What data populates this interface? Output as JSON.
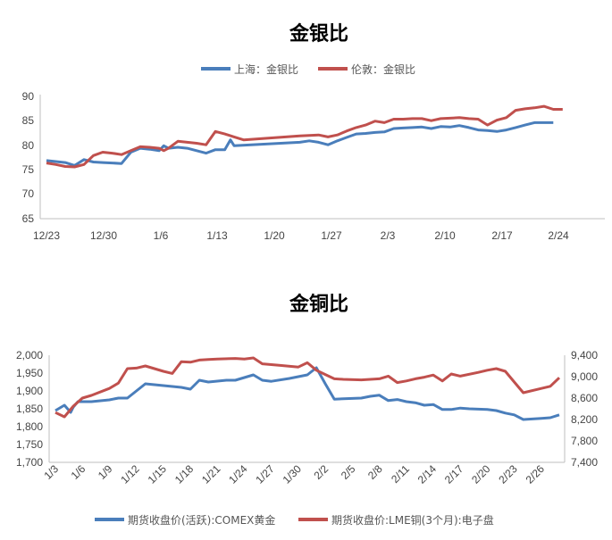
{
  "chart_data": [
    {
      "type": "line",
      "title": "金银比",
      "legend_position": "top",
      "y_axis": {
        "ticks": [
          "90",
          "85",
          "80",
          "75",
          "70",
          "65"
        ],
        "range": [
          65,
          90
        ]
      },
      "x_axis": {
        "ticks": [
          "12/23",
          "12/30",
          "1/6",
          "1/13",
          "1/20",
          "1/27",
          "2/3",
          "2/10",
          "2/17",
          "2/24"
        ]
      },
      "series": [
        {
          "name": "上海：金银比",
          "color": "#4A7EBB",
          "points": [
            [
              0,
              76.8
            ],
            [
              1,
              76.6
            ],
            [
              2,
              76.4
            ],
            [
              3,
              75.8
            ],
            [
              4,
              77.0
            ],
            [
              5,
              76.5
            ],
            [
              6,
              76.4
            ],
            [
              7,
              76.3
            ],
            [
              8,
              76.2
            ],
            [
              9,
              78.5
            ],
            [
              10,
              79.3
            ],
            [
              11,
              79.1
            ],
            [
              12,
              78.8
            ],
            [
              12.5,
              79.8
            ],
            [
              13,
              79.3
            ],
            [
              14,
              79.5
            ],
            [
              15,
              79.3
            ],
            [
              16,
              78.8
            ],
            [
              17,
              78.3
            ],
            [
              18,
              79.0
            ],
            [
              19,
              79.0
            ],
            [
              19.6,
              81.0
            ],
            [
              20,
              79.8
            ],
            [
              27,
              80.5
            ],
            [
              28,
              80.8
            ],
            [
              29,
              80.5
            ],
            [
              30,
              80.0
            ],
            [
              31,
              80.8
            ],
            [
              32,
              81.5
            ],
            [
              33,
              82.2
            ],
            [
              34,
              82.3
            ],
            [
              35,
              82.5
            ],
            [
              36,
              82.6
            ],
            [
              37,
              83.3
            ],
            [
              38,
              83.4
            ],
            [
              39,
              83.5
            ],
            [
              40,
              83.6
            ],
            [
              41,
              83.3
            ],
            [
              42,
              83.7
            ],
            [
              43,
              83.6
            ],
            [
              44,
              83.9
            ],
            [
              45,
              83.5
            ],
            [
              46,
              83.0
            ],
            [
              47,
              82.9
            ],
            [
              48,
              82.7
            ],
            [
              49,
              83.0
            ],
            [
              50,
              83.5
            ],
            [
              51,
              84.0
            ],
            [
              52,
              84.5
            ],
            [
              53,
              84.5
            ],
            [
              54,
              84.5
            ]
          ]
        },
        {
          "name": "伦敦：金银比",
          "color": "#C0504D",
          "points": [
            [
              0,
              76.3
            ],
            [
              1,
              76.0
            ],
            [
              2,
              75.6
            ],
            [
              3,
              75.5
            ],
            [
              4,
              76.0
            ],
            [
              5,
              77.8
            ],
            [
              6,
              78.5
            ],
            [
              7,
              78.3
            ],
            [
              8,
              78.0
            ],
            [
              9,
              78.8
            ],
            [
              10,
              79.6
            ],
            [
              11,
              79.5
            ],
            [
              12,
              79.3
            ],
            [
              12.5,
              78.8
            ],
            [
              13,
              79.3
            ],
            [
              14,
              80.7
            ],
            [
              15,
              80.5
            ],
            [
              16,
              80.3
            ],
            [
              17,
              80.0
            ],
            [
              18,
              82.7
            ],
            [
              19,
              82.2
            ],
            [
              20,
              81.6
            ],
            [
              21,
              81.0
            ],
            [
              27,
              81.8
            ],
            [
              29,
              82.0
            ],
            [
              30,
              81.6
            ],
            [
              31,
              82.0
            ],
            [
              32,
              82.8
            ],
            [
              33,
              83.5
            ],
            [
              34,
              84.0
            ],
            [
              35,
              84.8
            ],
            [
              36,
              84.5
            ],
            [
              37,
              85.2
            ],
            [
              38,
              85.2
            ],
            [
              39,
              85.3
            ],
            [
              40,
              85.3
            ],
            [
              41,
              84.9
            ],
            [
              42,
              85.3
            ],
            [
              43,
              85.4
            ],
            [
              44,
              85.5
            ],
            [
              45,
              85.3
            ],
            [
              46,
              85.2
            ],
            [
              47,
              84.0
            ],
            [
              48,
              85.0
            ],
            [
              49,
              85.5
            ],
            [
              50,
              87.0
            ],
            [
              51,
              87.3
            ],
            [
              52,
              87.5
            ],
            [
              53,
              87.8
            ],
            [
              54,
              87.2
            ],
            [
              55,
              87.2
            ]
          ]
        }
      ]
    },
    {
      "type": "line",
      "title": "金铜比",
      "legend_position": "bottom",
      "y_axis_left": {
        "ticks": [
          "2,000",
          "1,950",
          "1,900",
          "1,850",
          "1,800",
          "1,750",
          "1,700"
        ],
        "range": [
          1700,
          2000
        ]
      },
      "y_axis_right": {
        "ticks": [
          "9,400",
          "9,000",
          "8,600",
          "8,200",
          "7,800",
          "7,400"
        ],
        "range": [
          7400,
          9400
        ]
      },
      "x_axis": {
        "ticks": [
          "1/3",
          "1/6",
          "1/9",
          "1/12",
          "1/15",
          "1/18",
          "1/21",
          "1/24",
          "1/27",
          "1/30",
          "2/2",
          "2/5",
          "2/8",
          "2/11",
          "2/14",
          "2/17",
          "2/20",
          "2/23",
          "2/26"
        ]
      },
      "series": [
        {
          "name": "期货收盘价(活跃):COMEX黄金",
          "color": "#4A7EBB",
          "axis": "left",
          "points": [
            [
              0,
              1845
            ],
            [
              1,
              1860
            ],
            [
              1.7,
              1840
            ],
            [
              2,
              1855
            ],
            [
              2.5,
              1870
            ],
            [
              4,
              1870
            ],
            [
              6,
              1875
            ],
            [
              7,
              1880
            ],
            [
              8,
              1880
            ],
            [
              10,
              1920
            ],
            [
              12,
              1915
            ],
            [
              14,
              1910
            ],
            [
              15,
              1905
            ],
            [
              16,
              1930
            ],
            [
              17,
              1925
            ],
            [
              19,
              1930
            ],
            [
              20,
              1930
            ],
            [
              22,
              1945
            ],
            [
              23,
              1930
            ],
            [
              24,
              1927
            ],
            [
              26,
              1935
            ],
            [
              28,
              1945
            ],
            [
              29,
              1965
            ],
            [
              30,
              1920
            ],
            [
              31,
              1877
            ],
            [
              32,
              1878
            ],
            [
              34,
              1880
            ],
            [
              35,
              1885
            ],
            [
              36,
              1888
            ],
            [
              37,
              1873
            ],
            [
              38,
              1876
            ],
            [
              39,
              1870
            ],
            [
              40,
              1867
            ],
            [
              41,
              1860
            ],
            [
              42,
              1862
            ],
            [
              43,
              1848
            ],
            [
              44,
              1848
            ],
            [
              45,
              1852
            ],
            [
              46,
              1850
            ],
            [
              48,
              1848
            ],
            [
              49,
              1845
            ],
            [
              50,
              1838
            ],
            [
              51,
              1833
            ],
            [
              52,
              1820
            ],
            [
              54,
              1823
            ],
            [
              55,
              1825
            ],
            [
              56,
              1833
            ]
          ]
        },
        {
          "name": "期货收盘价:LME铜(3个月):电子盘",
          "color": "#C0504D",
          "axis": "right",
          "points": [
            [
              0,
              8330
            ],
            [
              1,
              8250
            ],
            [
              2,
              8450
            ],
            [
              3,
              8600
            ],
            [
              4,
              8650
            ],
            [
              6,
              8780
            ],
            [
              7,
              8880
            ],
            [
              8,
              9150
            ],
            [
              9,
              9160
            ],
            [
              10,
              9200
            ],
            [
              12,
              9100
            ],
            [
              13,
              9060
            ],
            [
              14,
              9280
            ],
            [
              15,
              9270
            ],
            [
              16,
              9310
            ],
            [
              17,
              9320
            ],
            [
              18,
              9330
            ],
            [
              20,
              9340
            ],
            [
              21,
              9330
            ],
            [
              22,
              9350
            ],
            [
              23,
              9240
            ],
            [
              25,
              9210
            ],
            [
              27,
              9180
            ],
            [
              28,
              9260
            ],
            [
              29,
              9120
            ],
            [
              30,
              9040
            ],
            [
              31,
              8960
            ],
            [
              32,
              8950
            ],
            [
              34,
              8940
            ],
            [
              35,
              8950
            ],
            [
              36,
              8960
            ],
            [
              37,
              9010
            ],
            [
              38,
              8890
            ],
            [
              39,
              8920
            ],
            [
              40,
              8960
            ],
            [
              41,
              8990
            ],
            [
              42,
              9030
            ],
            [
              43,
              8920
            ],
            [
              44,
              9050
            ],
            [
              45,
              9010
            ],
            [
              47,
              9080
            ],
            [
              48,
              9120
            ],
            [
              49,
              9150
            ],
            [
              50,
              9100
            ],
            [
              51,
              8900
            ],
            [
              52,
              8700
            ],
            [
              54,
              8780
            ],
            [
              55,
              8820
            ],
            [
              56,
              8980
            ]
          ]
        }
      ]
    }
  ]
}
